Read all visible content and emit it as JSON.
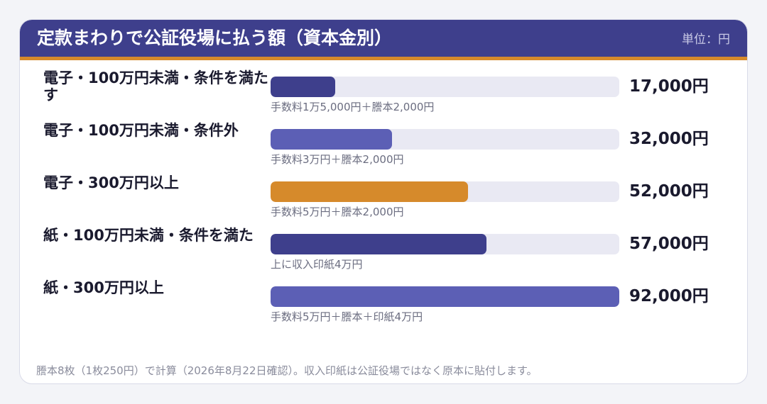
{
  "header": {
    "title": "定款まわりで公証役場に払う額（資本金別）",
    "unit": "単位：円"
  },
  "chart_data": {
    "type": "bar",
    "orientation": "horizontal",
    "title": "定款まわりで公証役場に払う額（資本金別）",
    "unit_label": "単位：円",
    "xlim": [
      0,
      92000
    ],
    "categories": [
      "電子・100万円未満・条件を満たす",
      "電子・100万円未満・条件外",
      "電子・300万円以上",
      "紙・100万円未満・条件を満た",
      "紙・300万円以上"
    ],
    "values": [
      17000,
      32000,
      52000,
      57000,
      92000
    ],
    "value_labels": [
      "17,000円",
      "32,000円",
      "52,000円",
      "57,000円",
      "92,000円"
    ],
    "notes": [
      "手数料1万5,000円＋謄本2,000円",
      "手数料3万円＋謄本2,000円",
      "手数料5万円＋謄本2,000円",
      "上に収入印紙4万円",
      "手数料5万円＋謄本＋印紙4万円"
    ],
    "colors": [
      "#3e3f8c",
      "#5c5fb5",
      "#d68a2b",
      "#3e3f8c",
      "#5c5fb5"
    ],
    "track_color": "#e9e9f3"
  },
  "footnote": "謄本8枚（1枚250円）で計算（2026年8月22日確認）。収入印紙は公証役場ではなく原本に貼付します。"
}
